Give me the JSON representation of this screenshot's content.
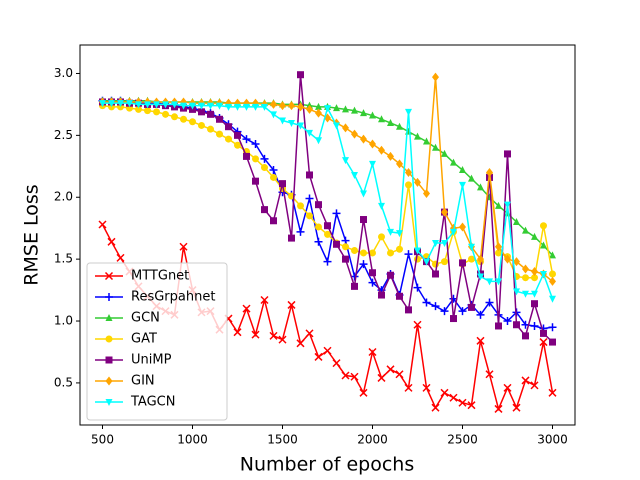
{
  "chart_data": {
    "type": "line",
    "xlabel": "Number of epochs",
    "ylabel": "RMSE Loss",
    "xlim": [
      375,
      3125
    ],
    "ylim": [
      0.16,
      3.23
    ],
    "xticks": [
      500,
      1000,
      1500,
      2000,
      2500,
      3000
    ],
    "yticks": [
      0.5,
      {
        "value": 1,
        "label": "1.0"
      },
      1.5,
      {
        "value": 2,
        "label": "2.0"
      },
      2.5,
      {
        "value": 3,
        "label": "3.0"
      }
    ],
    "legend": "lower left",
    "x": [
      500,
      550,
      600,
      650,
      700,
      750,
      800,
      850,
      900,
      950,
      1000,
      1050,
      1100,
      1150,
      1200,
      1250,
      1300,
      1350,
      1400,
      1450,
      1500,
      1550,
      1600,
      1650,
      1700,
      1750,
      1800,
      1850,
      1900,
      1950,
      2000,
      2050,
      2100,
      2150,
      2200,
      2250,
      2300,
      2350,
      2400,
      2450,
      2500,
      2550,
      2600,
      2650,
      2700,
      2750,
      2800,
      2850,
      2900,
      2950,
      3000
    ],
    "series": [
      {
        "name": "MTTGnet",
        "color": "#ff0000",
        "marker": "x",
        "values": [
          1.78,
          1.64,
          1.51,
          1.4,
          1.28,
          1.2,
          1.12,
          1.08,
          1.05,
          1.6,
          1.25,
          1.07,
          1.08,
          0.93,
          1.02,
          0.91,
          1.1,
          0.89,
          1.17,
          0.88,
          0.85,
          1.13,
          0.82,
          0.9,
          0.71,
          0.76,
          0.66,
          0.56,
          0.55,
          0.42,
          0.75,
          0.54,
          0.61,
          0.57,
          0.46,
          0.97,
          0.46,
          0.3,
          0.42,
          0.38,
          0.34,
          0.32,
          0.84,
          0.57,
          0.29,
          0.46,
          0.3,
          0.52,
          0.48,
          0.83,
          0.42
        ]
      },
      {
        "name": "ResGrpahnet",
        "color": "#0000ff",
        "marker": "+",
        "values": [
          2.78,
          2.78,
          2.78,
          2.77,
          2.77,
          2.76,
          2.76,
          2.75,
          2.74,
          2.73,
          2.72,
          2.7,
          2.68,
          2.64,
          2.59,
          2.53,
          2.47,
          2.43,
          2.31,
          2.22,
          2.04,
          2.02,
          1.72,
          1.99,
          1.64,
          1.48,
          1.87,
          1.65,
          1.36,
          1.46,
          1.31,
          1.25,
          1.38,
          1.21,
          1.54,
          1.27,
          1.15,
          1.12,
          1.08,
          1.18,
          1.08,
          1.13,
          1.05,
          1.15,
          1.05,
          1.0,
          1.07,
          0.97,
          0.96,
          0.94,
          0.95
        ]
      },
      {
        "name": "GCN",
        "color": "#33cc33",
        "marker": "^",
        "values": [
          2.78,
          2.78,
          2.78,
          2.78,
          2.78,
          2.78,
          2.77,
          2.77,
          2.77,
          2.77,
          2.77,
          2.77,
          2.77,
          2.77,
          2.76,
          2.76,
          2.76,
          2.76,
          2.76,
          2.76,
          2.75,
          2.75,
          2.75,
          2.74,
          2.73,
          2.73,
          2.72,
          2.71,
          2.7,
          2.68,
          2.66,
          2.63,
          2.6,
          2.57,
          2.53,
          2.49,
          2.45,
          2.4,
          2.35,
          2.28,
          2.22,
          2.15,
          2.08,
          2.0,
          1.93,
          1.87,
          1.8,
          1.73,
          1.68,
          1.61,
          1.53
        ]
      },
      {
        "name": "GAT",
        "color": "#ffd700",
        "marker": "o",
        "values": [
          2.74,
          2.73,
          2.73,
          2.72,
          2.71,
          2.7,
          2.69,
          2.67,
          2.65,
          2.63,
          2.61,
          2.58,
          2.55,
          2.51,
          2.47,
          2.42,
          2.37,
          2.31,
          2.24,
          2.16,
          2.07,
          2.01,
          1.93,
          1.85,
          1.76,
          1.7,
          1.63,
          1.6,
          1.57,
          1.55,
          1.55,
          1.68,
          1.55,
          1.58,
          2.1,
          1.5,
          1.52,
          1.46,
          1.48,
          1.72,
          1.46,
          1.5,
          1.48,
          2.18,
          1.55,
          1.52,
          1.36,
          1.35,
          1.35,
          1.77,
          1.38
        ]
      },
      {
        "name": "UniMP",
        "color": "#800080",
        "marker": "s",
        "values": [
          2.77,
          2.77,
          2.77,
          2.76,
          2.76,
          2.75,
          2.75,
          2.74,
          2.73,
          2.72,
          2.71,
          2.69,
          2.67,
          2.63,
          2.57,
          2.5,
          2.33,
          2.13,
          1.9,
          1.81,
          2.11,
          1.67,
          2.99,
          2.18,
          1.94,
          1.77,
          1.62,
          1.5,
          1.28,
          1.82,
          1.39,
          1.21,
          1.37,
          1.2,
          1.09,
          1.56,
          1.48,
          1.38,
          1.88,
          1.02,
          1.47,
          1.11,
          1.38,
          2.16,
          0.96,
          2.35,
          0.97,
          0.88,
          1.14,
          0.9,
          0.83
        ]
      },
      {
        "name": "GIN",
        "color": "#ffa500",
        "marker": "D",
        "values": [
          2.77,
          2.77,
          2.77,
          2.77,
          2.77,
          2.77,
          2.77,
          2.77,
          2.77,
          2.77,
          2.76,
          2.76,
          2.76,
          2.76,
          2.76,
          2.76,
          2.76,
          2.76,
          2.75,
          2.75,
          2.74,
          2.74,
          2.73,
          2.71,
          2.68,
          2.64,
          2.6,
          2.56,
          2.51,
          2.47,
          2.43,
          2.38,
          2.33,
          2.27,
          2.2,
          2.12,
          2.03,
          2.97,
          1.88,
          1.75,
          1.76,
          1.6,
          1.5,
          2.2,
          1.6,
          1.5,
          1.48,
          1.42,
          1.4,
          1.38,
          1.32
        ]
      },
      {
        "name": "TAGCN",
        "color": "#00ffff",
        "marker": "v",
        "values": [
          2.76,
          2.76,
          2.76,
          2.76,
          2.75,
          2.75,
          2.75,
          2.75,
          2.75,
          2.74,
          2.74,
          2.74,
          2.74,
          2.74,
          2.73,
          2.73,
          2.73,
          2.73,
          2.73,
          2.67,
          2.62,
          2.6,
          2.58,
          2.52,
          2.46,
          2.72,
          2.58,
          2.3,
          2.18,
          2.03,
          2.27,
          1.93,
          1.72,
          1.71,
          2.69,
          1.57,
          1.48,
          1.63,
          1.63,
          1.72,
          2.1,
          1.6,
          1.36,
          1.32,
          1.32,
          1.94,
          1.24,
          1.22,
          1.22,
          1.38,
          1.18
        ]
      }
    ]
  }
}
